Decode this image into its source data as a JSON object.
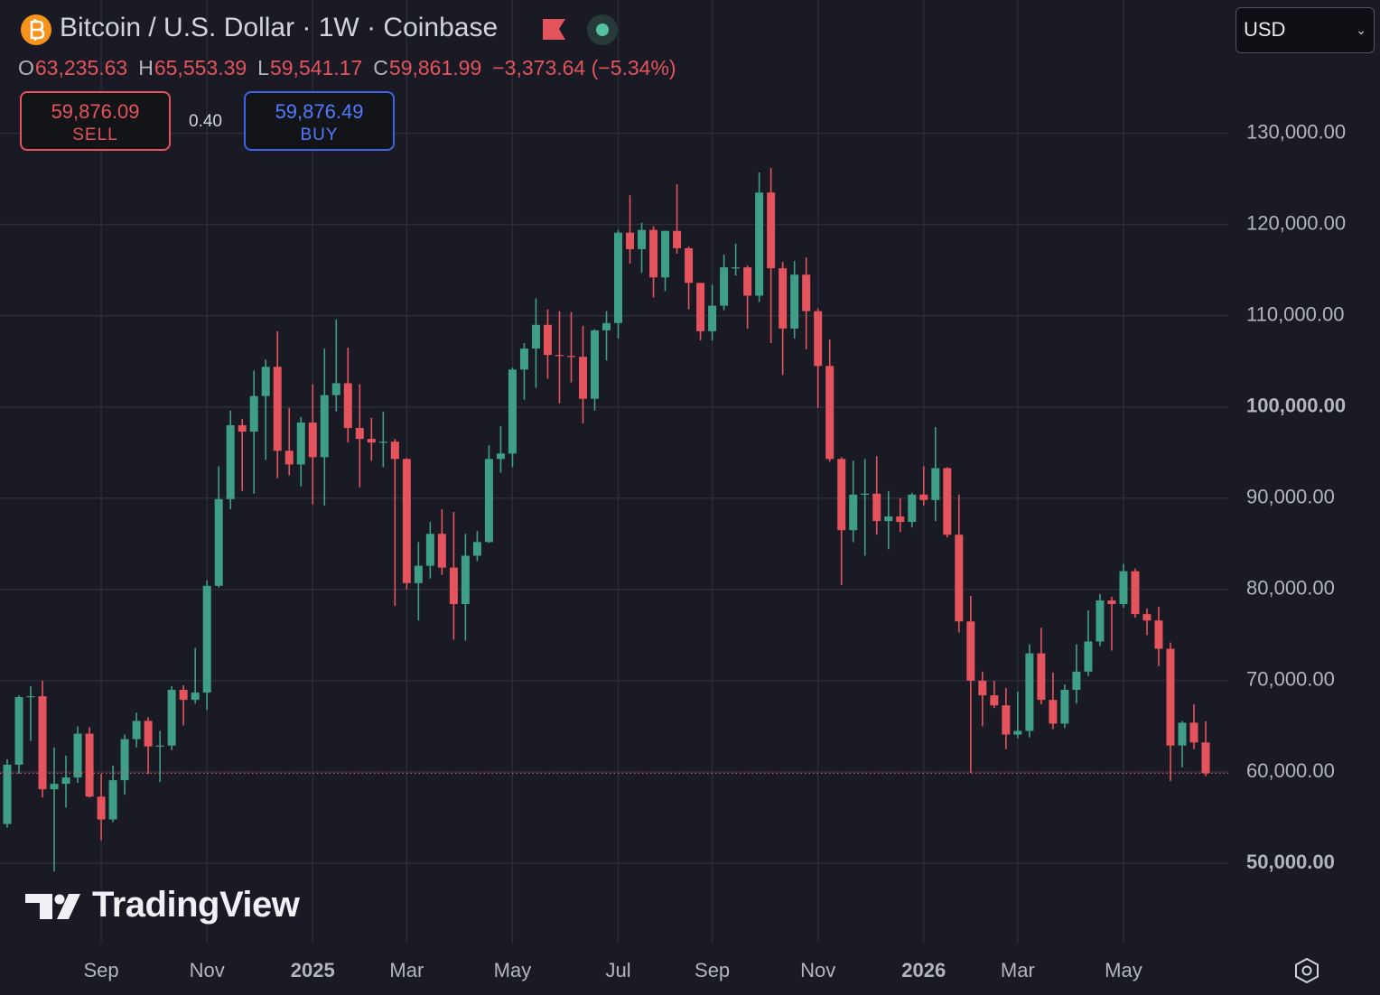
{
  "header": {
    "title": "Bitcoin / U.S. Dollar · 1W · Coinbase",
    "ohlc": [
      {
        "label": "O",
        "value": "63,235.63"
      },
      {
        "label": "H",
        "value": "65,553.39"
      },
      {
        "label": "L",
        "value": "59,541.17"
      },
      {
        "label": "C",
        "value": "59,861.99"
      }
    ],
    "change": "−3,373.64 (−5.34%)"
  },
  "trade": {
    "sell_price": "59,876.09",
    "sell": "SELL",
    "spread": "0.40",
    "buy_price": "59,876.49",
    "buy": "BUY"
  },
  "currency": "USD",
  "watermark": "TradingView",
  "chart_data": {
    "type": "candlestick",
    "up_color": "#3f9f86",
    "down_color": "#e5535d",
    "grid": true,
    "open": [
      54300,
      60800,
      68200,
      68300,
      58100,
      58700,
      59400,
      64200,
      57300,
      54800,
      59100,
      63600,
      65600,
      62800,
      62900,
      69000,
      67900,
      68700,
      80400,
      89900,
      98000,
      97300,
      101200,
      104400,
      95200,
      93700,
      98300,
      94500,
      101300,
      102600,
      97700,
      96500,
      96100,
      96200,
      94300,
      80700,
      82600,
      86100,
      82400,
      78400,
      83700,
      85200,
      94300,
      94900,
      104100,
      106400,
      109000,
      105700,
      105600,
      105500,
      100900,
      108400,
      109200,
      119100,
      117300,
      119400,
      114200,
      119300,
      117400,
      113600,
      108300,
      111100,
      115300,
      115300,
      112200,
      123500,
      115200,
      108600,
      114500,
      110500,
      104500,
      94300,
      86500,
      90400,
      90500,
      87500,
      88000,
      87400,
      90400,
      89800,
      93300,
      86000,
      76500,
      70000,
      68400,
      67300,
      64100,
      64500,
      73000,
      67900,
      65300,
      69000,
      71000,
      74300,
      78800,
      78400,
      82000,
      77300,
      76600,
      73500,
      62900,
      65400,
      63235.63
    ],
    "high": [
      61400,
      68400,
      69400,
      70000,
      62700,
      61800,
      65000,
      64900,
      59800,
      60700,
      64100,
      66500,
      66000,
      64500,
      69400,
      69500,
      73600,
      81000,
      93500,
      99600,
      98700,
      104000,
      105200,
      108300,
      99900,
      98900,
      102500,
      106400,
      109600,
      106500,
      102500,
      98800,
      99500,
      96500,
      94400,
      85200,
      87400,
      88800,
      88500,
      86100,
      86400,
      95800,
      97900,
      104300,
      107000,
      111900,
      110700,
      110500,
      110400,
      108900,
      108500,
      110500,
      119400,
      123200,
      120200,
      119800,
      119300,
      124400,
      117600,
      113600,
      113400,
      116700,
      117900,
      115500,
      125700,
      126200,
      115900,
      116000,
      116400,
      110800,
      107400,
      94500,
      94100,
      94300,
      94600,
      90800,
      90000,
      90600,
      93500,
      97800,
      93400,
      90400,
      79300,
      71000,
      70000,
      69200,
      68800,
      74000,
      75800,
      70900,
      69600,
      74000,
      77700,
      79500,
      79200,
      82800,
      82300,
      77900,
      78100,
      74200,
      65600,
      67400,
      65553.39
    ],
    "low": [
      53900,
      59800,
      63400,
      57200,
      49100,
      56100,
      58800,
      57200,
      52500,
      54500,
      57500,
      62700,
      59800,
      58900,
      62400,
      65100,
      67500,
      66800,
      80200,
      88800,
      90800,
      90500,
      94200,
      92200,
      92500,
      91300,
      89300,
      89200,
      99500,
      96100,
      91200,
      94100,
      93400,
      78200,
      80000,
      76600,
      81200,
      81600,
      74500,
      74400,
      83100,
      85100,
      92800,
      93400,
      100800,
      102100,
      103100,
      100400,
      102700,
      98200,
      99600,
      105100,
      107500,
      115700,
      114700,
      112000,
      112700,
      116800,
      110700,
      107300,
      107300,
      110600,
      114400,
      108600,
      111500,
      107000,
      103500,
      107500,
      106300,
      99900,
      94000,
      80500,
      85200,
      83700,
      86000,
      84400,
      86300,
      86800,
      89200,
      87500,
      85700,
      75300,
      59900,
      65000,
      67000,
      62500,
      63700,
      63800,
      67400,
      64700,
      64800,
      67500,
      70500,
      73800,
      73300,
      78000,
      76900,
      75000,
      71600,
      59000,
      60500,
      62500,
      59541.17
    ],
    "close": [
      60800,
      68200,
      68300,
      58100,
      58700,
      59400,
      64200,
      57300,
      54800,
      59100,
      63600,
      65600,
      62800,
      62900,
      69000,
      67900,
      68700,
      80400,
      89900,
      98000,
      97300,
      101200,
      104400,
      95200,
      93700,
      98300,
      94500,
      101300,
      102600,
      97700,
      96500,
      96100,
      96200,
      94300,
      80700,
      82600,
      86100,
      82400,
      78400,
      83700,
      85200,
      94300,
      94900,
      104100,
      106400,
      109000,
      105700,
      105600,
      105500,
      100900,
      108400,
      109200,
      119100,
      117300,
      119400,
      114200,
      119300,
      117400,
      113600,
      108300,
      111100,
      115300,
      115300,
      112200,
      123500,
      115200,
      108600,
      114500,
      110500,
      104500,
      94300,
      86500,
      90400,
      90500,
      87500,
      88000,
      87400,
      90400,
      89800,
      93300,
      86000,
      76500,
      70000,
      68400,
      67300,
      64100,
      64500,
      73000,
      67900,
      65300,
      69000,
      71000,
      74300,
      78800,
      78400,
      82000,
      77300,
      76600,
      73500,
      62900,
      65400,
      63235.63,
      59861.99
    ],
    "xlim": [
      -0.615,
      103.92
    ],
    "xticks": [
      {
        "value": 8,
        "label": "Sep"
      },
      {
        "value": 17,
        "label": "Nov"
      },
      {
        "value": 26,
        "label": "2025"
      },
      {
        "value": 34,
        "label": "Mar"
      },
      {
        "value": 43,
        "label": "May"
      },
      {
        "value": 52,
        "label": "Jul"
      },
      {
        "value": 60,
        "label": "Sep"
      },
      {
        "value": 69,
        "label": "Nov"
      },
      {
        "value": 78,
        "label": "2026"
      },
      {
        "value": 86,
        "label": "Mar"
      },
      {
        "value": 95,
        "label": "May"
      }
    ],
    "ylim": [
      41200,
      144600
    ],
    "yticks": [
      {
        "value": 50000,
        "label": "50,000.00"
      },
      {
        "value": 60000,
        "label": "60,000.00"
      },
      {
        "value": 70000,
        "label": "70,000.00"
      },
      {
        "value": 80000,
        "label": "80,000.00"
      },
      {
        "value": 90000,
        "label": "90,000.00"
      },
      {
        "value": 100000,
        "label": "100,000.00"
      },
      {
        "value": 110000,
        "label": "110,000.00"
      },
      {
        "value": 120000,
        "label": "120,000.00"
      },
      {
        "value": 130000,
        "label": "130,000.00"
      }
    ]
  }
}
